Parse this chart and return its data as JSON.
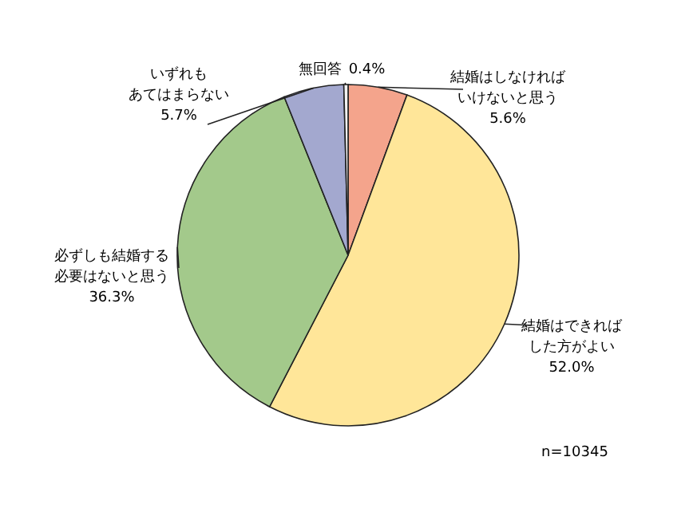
{
  "chart_data": {
    "type": "pie",
    "categories": [
      "結婚はしなければいけないと思う",
      "結婚はできればした方がよい",
      "必ずしも結婚する必要はないと思う",
      "いずれもあてはまらない",
      "無回答"
    ],
    "values": [
      5.6,
      52.0,
      36.3,
      5.7,
      0.4
    ],
    "value_labels": [
      "5.6%",
      "52.0%",
      "36.3%",
      "5.7%",
      "0.4%"
    ],
    "colors": [
      "#f4a48c",
      "#ffe699",
      "#a3c98b",
      "#a3a8cf",
      "#f2f2f2"
    ],
    "annotations": [
      "n=10345"
    ]
  }
}
